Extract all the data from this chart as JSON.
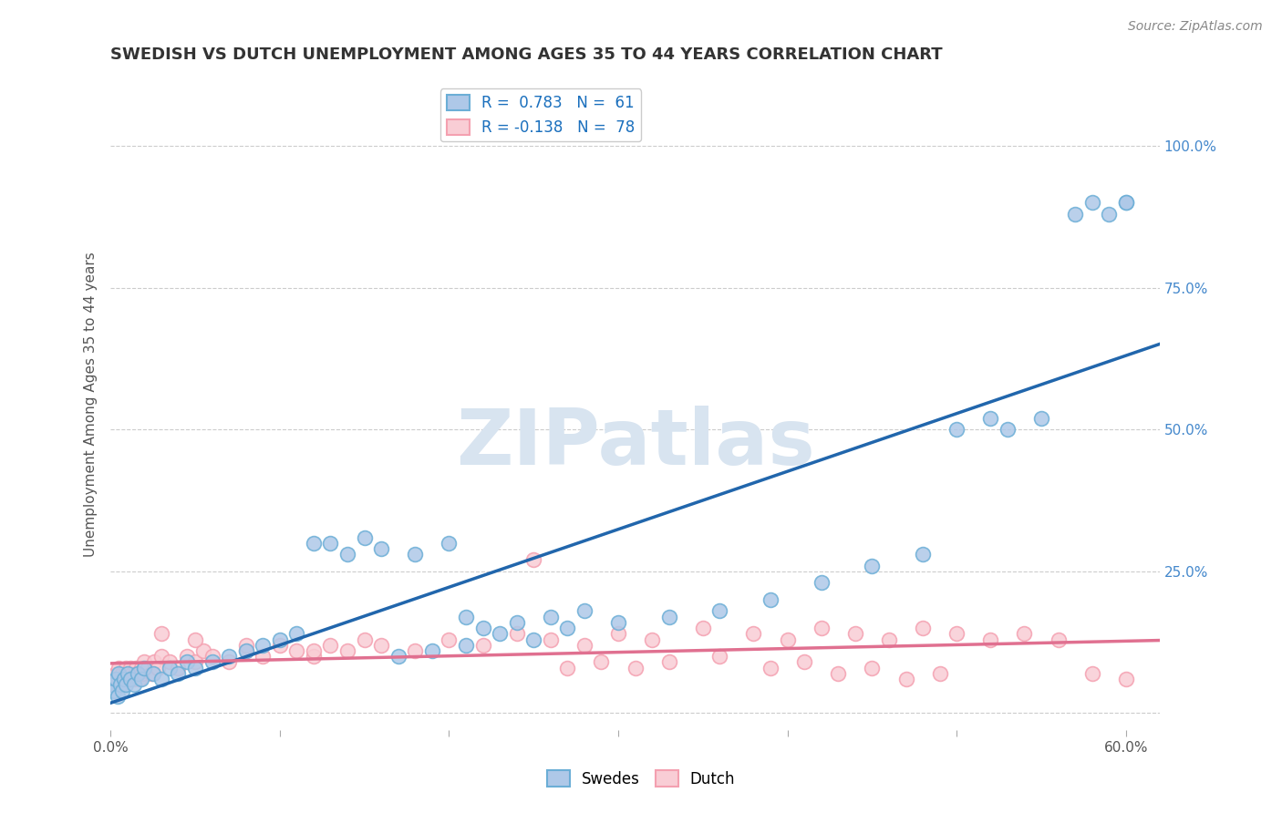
{
  "title": "SWEDISH VS DUTCH UNEMPLOYMENT AMONG AGES 35 TO 44 YEARS CORRELATION CHART",
  "source_text": "Source: ZipAtlas.com",
  "ylabel": "Unemployment Among Ages 35 to 44 years",
  "xlim": [
    0.0,
    0.62
  ],
  "ylim": [
    -0.03,
    1.12
  ],
  "blue_R": 0.783,
  "blue_N": 61,
  "pink_R": -0.138,
  "pink_N": 78,
  "blue_color": "#6baed6",
  "blue_fill": "#aec8e8",
  "pink_color": "#f4a0b0",
  "pink_fill": "#f9cdd5",
  "blue_line_color": "#2166ac",
  "pink_line_color": "#e07090",
  "legend_R_color": "#1a6fbd",
  "watermark_color": "#d8e4f0",
  "title_color": "#333333",
  "grid_color": "#cccccc",
  "background_color": "#ffffff",
  "blue_x": [
    0.001,
    0.002,
    0.003,
    0.004,
    0.005,
    0.006,
    0.007,
    0.008,
    0.009,
    0.01,
    0.012,
    0.014,
    0.016,
    0.018,
    0.02,
    0.025,
    0.03,
    0.035,
    0.04,
    0.045,
    0.05,
    0.06,
    0.07,
    0.08,
    0.09,
    0.1,
    0.11,
    0.12,
    0.13,
    0.15,
    0.17,
    0.19,
    0.21,
    0.23,
    0.25,
    0.27,
    0.3,
    0.33,
    0.36,
    0.39,
    0.42,
    0.45,
    0.48,
    0.5,
    0.52,
    0.21,
    0.22,
    0.24,
    0.26,
    0.28,
    0.14,
    0.16,
    0.18,
    0.2,
    0.53,
    0.55,
    0.57,
    0.58,
    0.59,
    0.6,
    0.6
  ],
  "blue_y": [
    0.05,
    0.04,
    0.06,
    0.03,
    0.07,
    0.05,
    0.04,
    0.06,
    0.05,
    0.07,
    0.06,
    0.05,
    0.07,
    0.06,
    0.08,
    0.07,
    0.06,
    0.08,
    0.07,
    0.09,
    0.08,
    0.09,
    0.1,
    0.11,
    0.12,
    0.13,
    0.14,
    0.3,
    0.3,
    0.31,
    0.1,
    0.11,
    0.12,
    0.14,
    0.13,
    0.15,
    0.16,
    0.17,
    0.18,
    0.2,
    0.23,
    0.26,
    0.28,
    0.5,
    0.52,
    0.17,
    0.15,
    0.16,
    0.17,
    0.18,
    0.28,
    0.29,
    0.28,
    0.3,
    0.5,
    0.52,
    0.88,
    0.9,
    0.88,
    0.9,
    0.9
  ],
  "pink_x": [
    0.001,
    0.002,
    0.003,
    0.004,
    0.005,
    0.006,
    0.007,
    0.008,
    0.009,
    0.01,
    0.011,
    0.012,
    0.013,
    0.014,
    0.015,
    0.016,
    0.017,
    0.018,
    0.019,
    0.02,
    0.022,
    0.024,
    0.026,
    0.028,
    0.03,
    0.035,
    0.04,
    0.045,
    0.05,
    0.055,
    0.06,
    0.07,
    0.08,
    0.09,
    0.1,
    0.11,
    0.12,
    0.13,
    0.14,
    0.15,
    0.16,
    0.18,
    0.2,
    0.22,
    0.24,
    0.26,
    0.28,
    0.3,
    0.32,
    0.35,
    0.38,
    0.4,
    0.42,
    0.44,
    0.46,
    0.48,
    0.5,
    0.52,
    0.54,
    0.56,
    0.58,
    0.6,
    0.25,
    0.27,
    0.29,
    0.31,
    0.33,
    0.36,
    0.39,
    0.41,
    0.43,
    0.45,
    0.47,
    0.49,
    0.03,
    0.05,
    0.08,
    0.12
  ],
  "pink_y": [
    0.06,
    0.05,
    0.07,
    0.06,
    0.08,
    0.05,
    0.07,
    0.06,
    0.08,
    0.07,
    0.06,
    0.08,
    0.07,
    0.06,
    0.08,
    0.07,
    0.06,
    0.08,
    0.07,
    0.09,
    0.08,
    0.07,
    0.09,
    0.08,
    0.1,
    0.09,
    0.08,
    0.1,
    0.09,
    0.11,
    0.1,
    0.09,
    0.11,
    0.1,
    0.12,
    0.11,
    0.1,
    0.12,
    0.11,
    0.13,
    0.12,
    0.11,
    0.13,
    0.12,
    0.14,
    0.13,
    0.12,
    0.14,
    0.13,
    0.15,
    0.14,
    0.13,
    0.15,
    0.14,
    0.13,
    0.15,
    0.14,
    0.13,
    0.14,
    0.13,
    0.07,
    0.06,
    0.27,
    0.08,
    0.09,
    0.08,
    0.09,
    0.1,
    0.08,
    0.09,
    0.07,
    0.08,
    0.06,
    0.07,
    0.14,
    0.13,
    0.12,
    0.11
  ]
}
